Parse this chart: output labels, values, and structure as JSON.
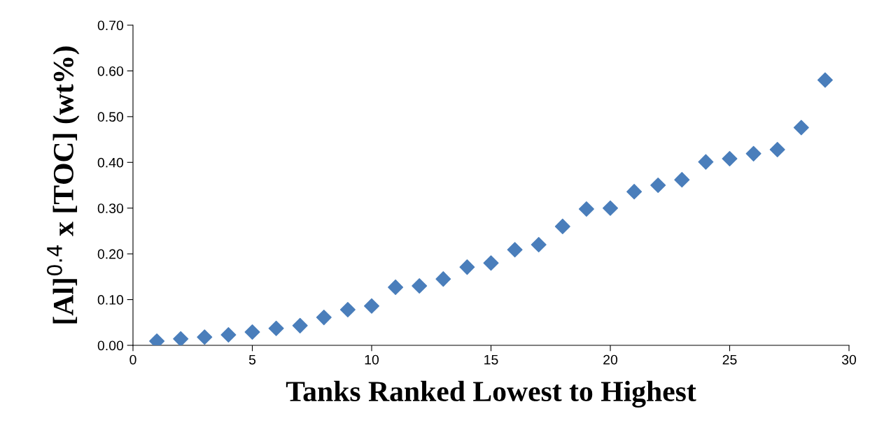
{
  "chart_data": {
    "type": "scatter",
    "xlabel": "Tanks Ranked Lowest to Highest",
    "ylabel": "[Al]$^{0.4}$ x [TOC] (wt%)",
    "x": [
      1,
      2,
      3,
      4,
      5,
      6,
      7,
      8,
      9,
      10,
      11,
      12,
      13,
      14,
      15,
      16,
      17,
      18,
      19,
      20,
      21,
      22,
      23,
      24,
      25,
      26,
      27,
      28,
      29
    ],
    "series": [
      {
        "color": "#4a7ebb",
        "values": [
          0.009,
          0.014,
          0.018,
          0.023,
          0.029,
          0.037,
          0.043,
          0.061,
          0.078,
          0.086,
          0.127,
          0.13,
          0.145,
          0.171,
          0.18,
          0.209,
          0.22,
          0.26,
          0.298,
          0.3,
          0.336,
          0.35,
          0.362,
          0.401,
          0.408,
          0.419,
          0.428,
          0.476,
          0.58
        ]
      }
    ],
    "marker": "diamond",
    "grid": false,
    "xlim": [
      0,
      30
    ],
    "xticks": [
      0,
      5,
      10,
      15,
      20,
      25,
      30
    ],
    "ylim": [
      0,
      0.7
    ],
    "yticks": [
      {
        "value": 0,
        "label": "0.00"
      },
      {
        "value": 0.1,
        "label": "0.10"
      },
      {
        "value": 0.2,
        "label": "0.20"
      },
      {
        "value": 0.3,
        "label": "0.30"
      },
      {
        "value": 0.4,
        "label": "0.40"
      },
      {
        "value": 0.5,
        "label": "0.50"
      },
      {
        "value": 0.6,
        "label": "0.60"
      },
      {
        "value": 0.7,
        "label": "0.70"
      }
    ]
  }
}
